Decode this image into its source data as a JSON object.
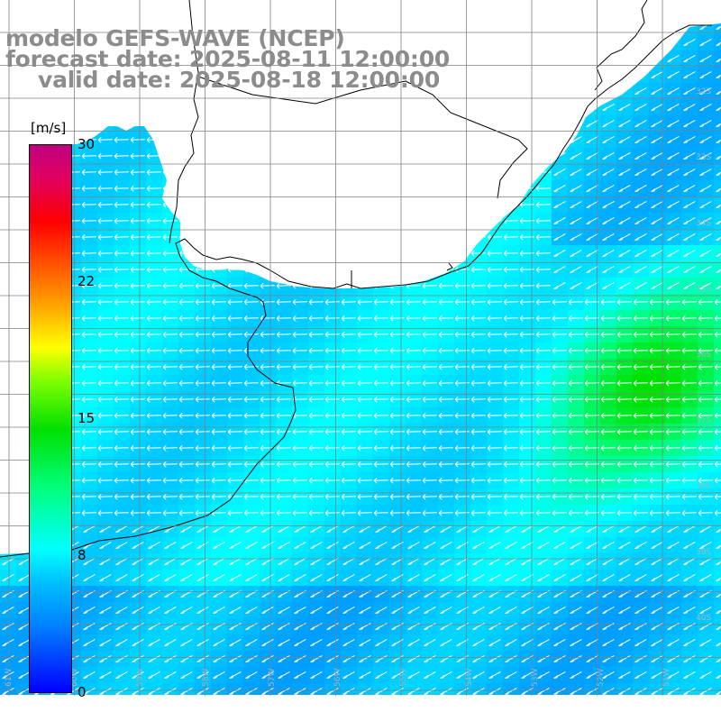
{
  "title": {
    "line1": "modelo GEFS-WAVE (NCEP)",
    "line2": "forecast date: 2025-08-11 12:00:00",
    "line3": "valid date: 2025-08-18 12:00:00"
  },
  "colorbar": {
    "unit": "[m/s]",
    "min": 0,
    "max": 30,
    "ticks": [
      "30",
      "22",
      "15",
      "8",
      "0"
    ],
    "colors": [
      "#0000ff",
      "#0080ff",
      "#00bfff",
      "#00ffff",
      "#00ff80",
      "#00e000",
      "#80ff00",
      "#ffff00",
      "#ffa000",
      "#ff4000",
      "#ff0000",
      "#c00080"
    ]
  },
  "map": {
    "land_color": "#ffffff",
    "coast_color": "#000000",
    "grid_color": "#808080",
    "arrow_color": "#ffffff",
    "label_color": "#9ab8c8",
    "lon_labels": [
      "61W",
      "60W",
      "59W",
      "58W",
      "57W",
      "56W",
      "55W",
      "54W",
      "53W",
      "52W",
      "51W"
    ],
    "lat_labels": [
      "32S",
      "33S",
      "34S",
      "35S",
      "36S",
      "37S",
      "38S",
      "39S",
      "40S"
    ]
  }
}
